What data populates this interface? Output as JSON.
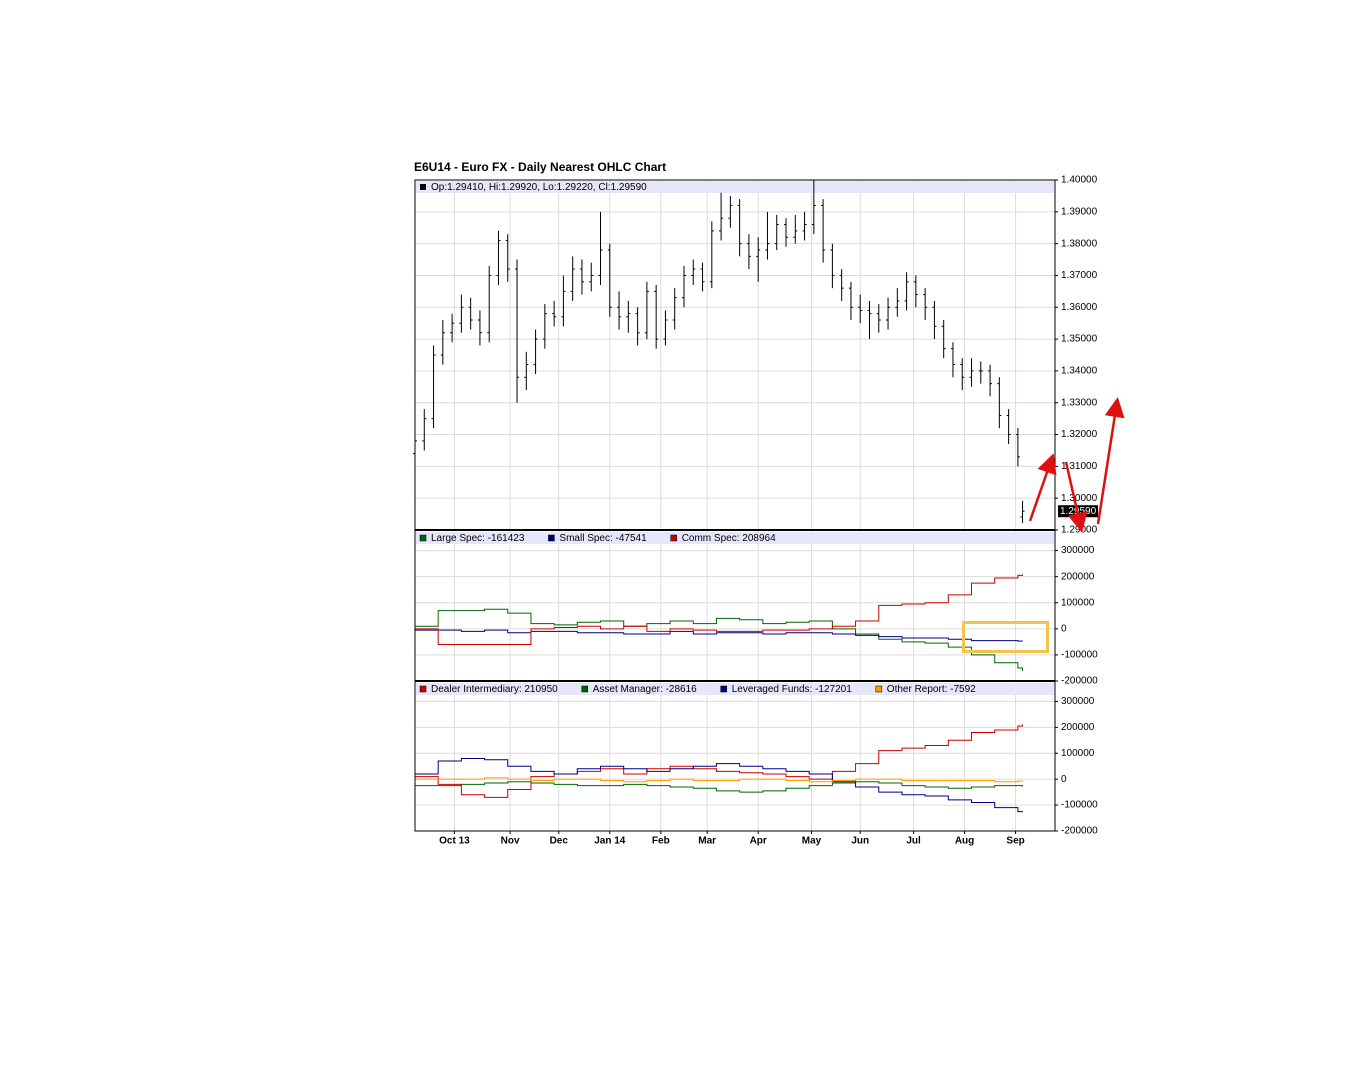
{
  "chart_data": [
    {
      "type": "ohlc",
      "title": "E6U14 - Euro FX - Daily Nearest OHLC Chart",
      "legend_text": "Op:1.29410, Hi:1.29920, Lo:1.29220, Cl:1.29590",
      "last_label": "1.29590",
      "color": "#000000",
      "grid": true,
      "x": [
        0,
        4,
        8,
        12,
        16,
        20,
        24,
        28,
        32,
        36,
        40,
        44,
        48,
        52,
        56,
        60,
        64,
        68,
        72,
        76,
        80,
        84,
        88,
        92,
        96,
        100,
        104,
        108,
        112,
        116,
        120,
        124,
        128,
        132,
        136,
        140,
        144,
        148,
        152,
        156,
        160,
        164,
        168,
        172,
        176,
        180,
        184,
        188,
        192,
        196,
        200,
        204,
        208,
        212,
        216,
        220,
        224,
        228,
        232,
        236,
        240,
        244,
        248,
        252,
        256,
        260,
        262
      ],
      "open": [
        1.314,
        1.318,
        1.325,
        1.345,
        1.352,
        1.355,
        1.36,
        1.356,
        1.352,
        1.37,
        1.381,
        1.372,
        1.338,
        1.342,
        1.35,
        1.358,
        1.357,
        1.365,
        1.372,
        1.368,
        1.37,
        1.378,
        1.36,
        1.357,
        1.358,
        1.352,
        1.365,
        1.35,
        1.356,
        1.363,
        1.37,
        1.372,
        1.368,
        1.384,
        1.388,
        1.392,
        1.38,
        1.376,
        1.378,
        1.38,
        1.386,
        1.382,
        1.384,
        1.386,
        1.392,
        1.378,
        1.37,
        1.366,
        1.36,
        1.359,
        1.358,
        1.356,
        1.36,
        1.362,
        1.368,
        1.364,
        1.36,
        1.354,
        1.347,
        1.342,
        1.338,
        1.34,
        1.34,
        1.336,
        1.326,
        1.32,
        1.2941
      ],
      "high": [
        1.321,
        1.328,
        1.348,
        1.356,
        1.358,
        1.364,
        1.363,
        1.359,
        1.373,
        1.384,
        1.383,
        1.375,
        1.346,
        1.353,
        1.361,
        1.362,
        1.37,
        1.376,
        1.375,
        1.374,
        1.39,
        1.38,
        1.365,
        1.362,
        1.36,
        1.368,
        1.367,
        1.359,
        1.366,
        1.373,
        1.375,
        1.374,
        1.387,
        1.396,
        1.395,
        1.394,
        1.383,
        1.382,
        1.39,
        1.389,
        1.388,
        1.389,
        1.39,
        1.4,
        1.394,
        1.38,
        1.372,
        1.368,
        1.364,
        1.362,
        1.361,
        1.363,
        1.366,
        1.371,
        1.37,
        1.366,
        1.362,
        1.356,
        1.349,
        1.344,
        1.344,
        1.343,
        1.342,
        1.338,
        1.328,
        1.322,
        1.2992
      ],
      "low": [
        1.311,
        1.315,
        1.322,
        1.342,
        1.349,
        1.352,
        1.353,
        1.348,
        1.349,
        1.367,
        1.368,
        1.33,
        1.334,
        1.339,
        1.347,
        1.354,
        1.354,
        1.362,
        1.364,
        1.365,
        1.367,
        1.357,
        1.353,
        1.352,
        1.348,
        1.35,
        1.347,
        1.348,
        1.353,
        1.36,
        1.367,
        1.365,
        1.366,
        1.381,
        1.385,
        1.376,
        1.372,
        1.368,
        1.375,
        1.378,
        1.379,
        1.38,
        1.381,
        1.383,
        1.374,
        1.366,
        1.362,
        1.356,
        1.355,
        1.35,
        1.352,
        1.353,
        1.357,
        1.359,
        1.36,
        1.356,
        1.35,
        1.344,
        1.338,
        1.334,
        1.335,
        1.336,
        1.332,
        1.322,
        1.317,
        1.31,
        1.2922
      ],
      "close": [
        1.318,
        1.325,
        1.345,
        1.352,
        1.355,
        1.36,
        1.356,
        1.352,
        1.37,
        1.381,
        1.372,
        1.338,
        1.342,
        1.35,
        1.358,
        1.357,
        1.365,
        1.372,
        1.368,
        1.37,
        1.378,
        1.36,
        1.357,
        1.358,
        1.352,
        1.365,
        1.35,
        1.356,
        1.363,
        1.37,
        1.372,
        1.368,
        1.384,
        1.388,
        1.392,
        1.38,
        1.376,
        1.378,
        1.38,
        1.386,
        1.382,
        1.384,
        1.386,
        1.392,
        1.378,
        1.37,
        1.366,
        1.36,
        1.359,
        1.358,
        1.356,
        1.36,
        1.362,
        1.368,
        1.364,
        1.36,
        1.354,
        1.347,
        1.342,
        1.338,
        1.34,
        1.34,
        1.336,
        1.326,
        1.32,
        1.313,
        1.2959
      ],
      "xlim": [
        0,
        276
      ],
      "ylim": [
        1.29,
        1.4
      ],
      "yticks": [
        {
          "value": 1.29,
          "label": "1.29000"
        },
        {
          "value": 1.3,
          "label": "1.30000"
        },
        {
          "value": 1.31,
          "label": "1.31000"
        },
        {
          "value": 1.32,
          "label": "1.32000"
        },
        {
          "value": 1.33,
          "label": "1.33000"
        },
        {
          "value": 1.34,
          "label": "1.34000"
        },
        {
          "value": 1.35,
          "label": "1.35000"
        },
        {
          "value": 1.36,
          "label": "1.36000"
        },
        {
          "value": 1.37,
          "label": "1.37000"
        },
        {
          "value": 1.38,
          "label": "1.38000"
        },
        {
          "value": 1.39,
          "label": "1.39000"
        },
        {
          "value": 1.4,
          "label": "1.40000"
        }
      ]
    },
    {
      "type": "step",
      "grid": true,
      "x": [
        0,
        10,
        20,
        30,
        40,
        50,
        60,
        70,
        80,
        90,
        100,
        110,
        120,
        130,
        140,
        150,
        160,
        170,
        180,
        190,
        200,
        210,
        220,
        230,
        240,
        250,
        260,
        262
      ],
      "xlim": [
        0,
        276
      ],
      "ylim": [
        -200000,
        375000
      ],
      "yticks": [
        -200000,
        -100000,
        0,
        100000,
        200000,
        300000
      ],
      "series": [
        {
          "name": "Large Spec: -161423",
          "color": "#006600",
          "values": [
            10000,
            70000,
            70000,
            75000,
            60000,
            20000,
            15000,
            25000,
            30000,
            10000,
            20000,
            30000,
            20000,
            40000,
            35000,
            20000,
            25000,
            30000,
            0,
            -20000,
            -40000,
            -50000,
            -55000,
            -70000,
            -100000,
            -130000,
            -150000,
            -161423
          ]
        },
        {
          "name": "Small Spec: -47541",
          "color": "#000080",
          "values": [
            -5000,
            -5000,
            -10000,
            -5000,
            -15000,
            -10000,
            -10000,
            -15000,
            -15000,
            -20000,
            -20000,
            -10000,
            -20000,
            -15000,
            -15000,
            -20000,
            -15000,
            -15000,
            -20000,
            -25000,
            -30000,
            -35000,
            -35000,
            -40000,
            -45000,
            -45000,
            -47000,
            -47541
          ]
        },
        {
          "name": "Comm Spec: 208964",
          "color": "#cc0000",
          "values": [
            0,
            -60000,
            -60000,
            -60000,
            -60000,
            0,
            5000,
            10000,
            0,
            10000,
            -10000,
            0,
            -5000,
            -10000,
            -10000,
            -5000,
            -5000,
            0,
            10000,
            30000,
            90000,
            95000,
            100000,
            130000,
            175000,
            195000,
            205000,
            208964
          ]
        }
      ]
    },
    {
      "type": "step",
      "grid": true,
      "x": [
        0,
        10,
        20,
        30,
        40,
        50,
        60,
        70,
        80,
        90,
        100,
        110,
        120,
        130,
        140,
        150,
        160,
        170,
        180,
        190,
        200,
        210,
        220,
        230,
        240,
        250,
        260,
        262
      ],
      "xlim": [
        0,
        276
      ],
      "xticks": [
        {
          "value": 17,
          "label": "Oct 13"
        },
        {
          "value": 41,
          "label": "Nov"
        },
        {
          "value": 62,
          "label": "Dec"
        },
        {
          "value": 84,
          "label": "Jan 14"
        },
        {
          "value": 106,
          "label": "Feb"
        },
        {
          "value": 126,
          "label": "Mar"
        },
        {
          "value": 148,
          "label": "Apr"
        },
        {
          "value": 171,
          "label": "May"
        },
        {
          "value": 192,
          "label": "Jun"
        },
        {
          "value": 215,
          "label": "Jul"
        },
        {
          "value": 237,
          "label": "Aug"
        },
        {
          "value": 259,
          "label": "Sep"
        }
      ],
      "ylim": [
        -200000,
        375000
      ],
      "yticks": [
        -200000,
        -100000,
        0,
        100000,
        200000,
        300000
      ],
      "series": [
        {
          "name": "Dealer Intermediary: 210950",
          "color": "#cc0000",
          "values": [
            10000,
            -20000,
            -60000,
            -70000,
            -40000,
            10000,
            20000,
            30000,
            40000,
            20000,
            40000,
            50000,
            40000,
            30000,
            25000,
            20000,
            10000,
            0,
            30000,
            60000,
            110000,
            120000,
            130000,
            150000,
            180000,
            190000,
            205000,
            210950
          ]
        },
        {
          "name": "Asset Manager: -28616",
          "color": "#006600",
          "values": [
            -25000,
            -25000,
            -20000,
            -15000,
            -10000,
            -15000,
            -20000,
            -25000,
            -25000,
            -20000,
            -25000,
            -30000,
            -35000,
            -45000,
            -50000,
            -45000,
            -35000,
            -25000,
            -15000,
            -10000,
            -15000,
            -25000,
            -30000,
            -35000,
            -30000,
            -25000,
            -25000,
            -28616
          ]
        },
        {
          "name": "Leveraged Funds: -127201",
          "color": "#000080",
          "values": [
            20000,
            70000,
            80000,
            75000,
            50000,
            30000,
            20000,
            40000,
            50000,
            40000,
            30000,
            40000,
            50000,
            60000,
            50000,
            40000,
            30000,
            20000,
            -10000,
            -30000,
            -50000,
            -60000,
            -65000,
            -80000,
            -90000,
            -110000,
            -125000,
            -127201
          ]
        },
        {
          "name": "Other Report: -7592",
          "color": "#ff9900",
          "values": [
            0,
            0,
            0,
            5000,
            0,
            -5000,
            0,
            0,
            -5000,
            -10000,
            -5000,
            0,
            -5000,
            -5000,
            0,
            0,
            -5000,
            -10000,
            -5000,
            0,
            0,
            -5000,
            -5000,
            -5000,
            -5000,
            -10000,
            -7000,
            -7592
          ]
        }
      ]
    }
  ]
}
